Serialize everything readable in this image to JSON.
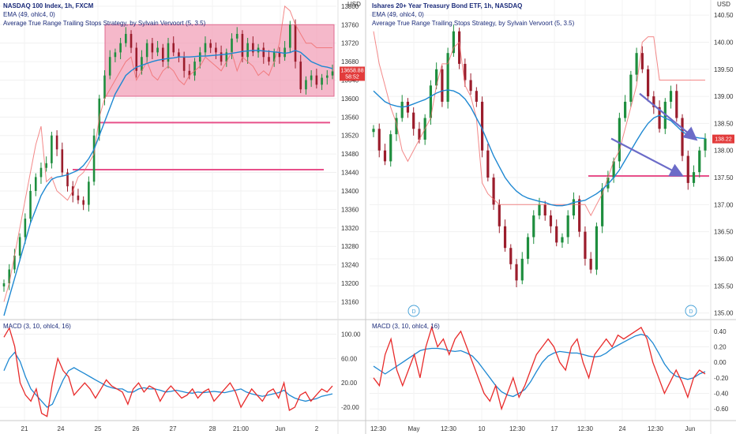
{
  "left": {
    "legend": {
      "title": "NASDAQ 100 Index, 1h, FXCM",
      "ema": "EMA (49, ohlc4, 0)",
      "atr": "Average True Range Trailing Stops Strategy, by Sylvain Vervoort (5, 3.5)",
      "macd": "MACD (3, 10, ohlc4, 16)"
    },
    "price_label": "13658.88",
    "timer_label": "58:52",
    "currency": "USD"
  },
  "right": {
    "legend": {
      "title": "Ishares 20+ Year Treasury Bond ETF, 1h, NASDAQ",
      "ema": "EMA (49, ohlc4, 0)",
      "atr": "Average True Range Trailing Stops Strategy, by Sylvain Vervoort (5, 3.5)",
      "macd": "MACD (3, 10, ohlc4, 16)"
    },
    "price_label": "138.22",
    "currency": "USD",
    "dividend_marker": "D"
  },
  "chart_data": [
    {
      "type": "candlestick",
      "title": "NASDAQ 100 Index, 1h, FXCM",
      "x_ticks": [
        "21",
        "24",
        "25",
        "26",
        "27",
        "28",
        "21:00",
        "Jun",
        "2"
      ],
      "y_ticks": [
        13160,
        13200,
        13240,
        13280,
        13320,
        13360,
        13400,
        13440,
        13480,
        13520,
        13560,
        13600,
        13640,
        13680,
        13720,
        13760,
        13800
      ],
      "ylim": [
        13130,
        13810
      ],
      "close_path": [
        13200,
        13230,
        13260,
        13300,
        13340,
        13400,
        13430,
        13450,
        13460,
        13520,
        13490,
        13440,
        13410,
        13390,
        13380,
        13370,
        13420,
        13520,
        13600,
        13650,
        13690,
        13700,
        13720,
        13740,
        13710,
        13660,
        13690,
        13720,
        13700,
        13710,
        13680,
        13720,
        13700,
        13690,
        13660,
        13650,
        13680,
        13700,
        13720,
        13710,
        13700,
        13680,
        13700,
        13730,
        13740,
        13690,
        13720,
        13700,
        13710,
        13690,
        13680,
        13700,
        13690,
        13710,
        13760,
        13680,
        13620,
        13640,
        13650,
        13630,
        13645,
        13650,
        13658.88
      ],
      "ema_path": [
        13130,
        13170,
        13210,
        13250,
        13290,
        13330,
        13360,
        13390,
        13410,
        13425,
        13430,
        13432,
        13435,
        13440,
        13445,
        13455,
        13470,
        13490,
        13520,
        13550,
        13580,
        13610,
        13630,
        13650,
        13660,
        13668,
        13672,
        13676,
        13680,
        13683,
        13685,
        13687,
        13688,
        13690,
        13690,
        13690,
        13691,
        13692,
        13692,
        13693,
        13694,
        13695,
        13696,
        13698,
        13700,
        13702,
        13703,
        13704,
        13704,
        13703,
        13702,
        13701,
        13700,
        13698,
        13700,
        13704,
        13700,
        13690,
        13680,
        13675,
        13670,
        13668,
        13665
      ],
      "atr_stop_path": [
        13160,
        13200,
        13260,
        13320,
        13380,
        13440,
        13500,
        13540,
        13420,
        13430,
        13400,
        13390,
        13380,
        13400,
        13430,
        13440,
        13460,
        13480,
        13560,
        13600,
        13620,
        13640,
        13660,
        13680,
        13690,
        13640,
        13660,
        13680,
        13650,
        13640,
        13660,
        13670,
        13660,
        13640,
        13630,
        13650,
        13660,
        13670,
        13690,
        13680,
        13670,
        13660,
        13680,
        13700,
        13660,
        13690,
        13680,
        13670,
        13650,
        13660,
        13650,
        13680,
        13720,
        13800,
        13790,
        13760,
        13740,
        13720,
        13720,
        13710,
        13710,
        13710,
        13710
      ],
      "annotations": {
        "range_box": {
          "price_low": 13605,
          "price_high": 13760
        },
        "support_line_upper": 13548,
        "support_line_lower": 13446
      },
      "macd": {
        "y_ticks": [
          100.0,
          60.0,
          20.0,
          -20.0
        ],
        "ylim": [
          -38,
          120
        ],
        "macd_line": [
          95,
          110,
          80,
          20,
          0,
          -10,
          10,
          -30,
          -35,
          20,
          60,
          40,
          30,
          0,
          10,
          20,
          10,
          -5,
          10,
          25,
          15,
          10,
          5,
          -15,
          10,
          20,
          5,
          15,
          10,
          -10,
          5,
          15,
          5,
          -5,
          0,
          10,
          -5,
          5,
          10,
          -10,
          0,
          10,
          20,
          5,
          -20,
          -5,
          10,
          0,
          -10,
          5,
          10,
          -5,
          20,
          -25,
          -20,
          0,
          5,
          -10,
          0,
          10,
          5,
          15
        ],
        "signal_line": [
          40,
          60,
          70,
          55,
          30,
          10,
          0,
          -10,
          -20,
          -15,
          5,
          25,
          40,
          45,
          40,
          35,
          30,
          25,
          20,
          15,
          12,
          10,
          10,
          5,
          5,
          10,
          12,
          10,
          10,
          8,
          5,
          6,
          8,
          6,
          4,
          3,
          5,
          4,
          5,
          6,
          5,
          4,
          6,
          8,
          10,
          5,
          2,
          0,
          -2,
          0,
          2,
          4,
          8,
          0,
          -5,
          -8,
          -10,
          -8,
          -6,
          -2,
          0,
          2
        ]
      }
    },
    {
      "type": "candlestick",
      "title": "Ishares 20+ Year Treasury Bond ETF, 1h, NASDAQ",
      "x_ticks": [
        "12:30",
        "May",
        "12:30",
        "10",
        "12:30",
        "17",
        "12:30",
        "24",
        "12:30",
        "Jun"
      ],
      "y_ticks": [
        135.0,
        135.5,
        136.0,
        136.5,
        137.0,
        137.5,
        138.0,
        138.5,
        139.0,
        139.5,
        140.0,
        140.5
      ],
      "ylim": [
        134.95,
        140.75
      ],
      "close_path": [
        138.4,
        138.0,
        137.8,
        138.3,
        138.6,
        138.9,
        138.7,
        138.4,
        138.2,
        138.6,
        139.2,
        139.5,
        138.9,
        139.8,
        140.2,
        139.6,
        139.3,
        139.1,
        138.9,
        138.0,
        137.5,
        137.0,
        136.6,
        136.2,
        135.9,
        135.6,
        136.0,
        136.4,
        136.8,
        137.0,
        136.8,
        136.6,
        136.3,
        136.4,
        136.8,
        137.1,
        136.5,
        136.0,
        135.8,
        136.6,
        137.3,
        137.5,
        137.8,
        138.6,
        138.9,
        139.4,
        139.8,
        139.5,
        139.0,
        138.8,
        138.4,
        138.9,
        139.1,
        138.6,
        137.9,
        137.4,
        137.6,
        138.0,
        138.22
      ],
      "ema_path": [
        139.1,
        139.0,
        138.9,
        138.85,
        138.82,
        138.8,
        138.82,
        138.86,
        138.9,
        138.94,
        139.0,
        139.06,
        139.1,
        139.12,
        139.1,
        139.05,
        138.95,
        138.8,
        138.6,
        138.4,
        138.15,
        137.9,
        137.7,
        137.5,
        137.36,
        137.25,
        137.17,
        137.12,
        137.09,
        137.06,
        137.04,
        137.0,
        136.98,
        136.98,
        137.0,
        137.04,
        137.06,
        137.08,
        137.14,
        137.2,
        137.28,
        137.38,
        137.5,
        137.64,
        137.82,
        138.0,
        138.18,
        138.35,
        138.5,
        138.6,
        138.65,
        138.6,
        138.55,
        138.45,
        138.35,
        138.28,
        138.25,
        138.23,
        138.22
      ],
      "atr_stop_path": [
        140.2,
        139.6,
        139.2,
        138.8,
        138.5,
        138.0,
        137.8,
        138.0,
        138.2,
        138.4,
        138.6,
        139.2,
        139.6,
        139.6,
        139.9,
        140.0,
        139.2,
        139.0,
        138.6,
        137.4,
        137.2,
        137.1,
        137.0,
        137.0,
        137.0,
        137.0,
        137.0,
        137.0,
        137.0,
        137.0,
        137.0,
        137.0,
        137.0,
        137.0,
        137.0,
        137.0,
        137.0,
        137.0,
        136.8,
        137.0,
        137.2,
        137.5,
        137.8,
        138.0,
        138.4,
        138.8,
        139.2,
        140.0,
        140.1,
        140.1,
        139.3,
        139.3,
        139.3,
        139.3,
        139.3,
        139.3,
        139.3,
        139.3,
        139.3
      ],
      "annotations": {
        "support_line": 137.53,
        "arrow_upper": {
          "from": 139.05,
          "to": 138.22
        },
        "arrow_lower": {
          "from": 138.22,
          "to": 137.55
        },
        "dividend_markers": [
          "D",
          "D"
        ]
      },
      "macd": {
        "y_ticks": [
          0.4,
          0.2,
          0.0,
          -0.2,
          -0.4,
          -0.6
        ],
        "ylim": [
          -0.72,
          0.52
        ],
        "macd_line": [
          -0.2,
          -0.3,
          0.1,
          0.3,
          -0.1,
          -0.3,
          -0.1,
          0.1,
          -0.2,
          0.2,
          0.45,
          0.2,
          0.3,
          0.1,
          0.3,
          0.4,
          0.2,
          0.0,
          -0.2,
          -0.4,
          -0.5,
          -0.3,
          -0.6,
          -0.4,
          -0.2,
          -0.45,
          -0.3,
          -0.1,
          0.1,
          0.2,
          0.3,
          0.2,
          0.0,
          -0.1,
          0.2,
          0.3,
          0.0,
          -0.2,
          0.1,
          0.2,
          0.3,
          0.2,
          0.35,
          0.3,
          0.35,
          0.4,
          0.45,
          0.3,
          0.0,
          -0.2,
          -0.4,
          -0.25,
          -0.1,
          -0.25,
          -0.45,
          -0.2,
          -0.1,
          -0.15
        ],
        "signal_line": [
          -0.05,
          -0.1,
          -0.15,
          -0.1,
          -0.05,
          0.0,
          0.05,
          0.1,
          0.15,
          0.17,
          0.18,
          0.18,
          0.17,
          0.15,
          0.14,
          0.15,
          0.12,
          0.08,
          0.0,
          -0.1,
          -0.2,
          -0.3,
          -0.38,
          -0.42,
          -0.44,
          -0.4,
          -0.35,
          -0.25,
          -0.12,
          0.0,
          0.08,
          0.12,
          0.14,
          0.13,
          0.12,
          0.12,
          0.1,
          0.08,
          0.07,
          0.08,
          0.12,
          0.18,
          0.22,
          0.26,
          0.3,
          0.34,
          0.36,
          0.34,
          0.25,
          0.12,
          -0.02,
          -0.12,
          -0.18,
          -0.2,
          -0.22,
          -0.2,
          -0.15,
          -0.12
        ]
      }
    }
  ]
}
